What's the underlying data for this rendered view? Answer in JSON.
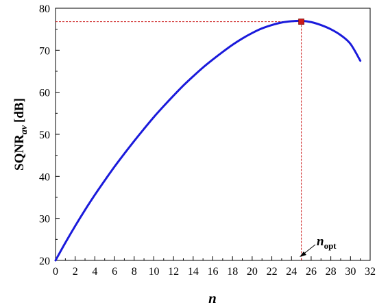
{
  "chart_data": {
    "type": "line",
    "xlabel": "n",
    "ylabel": {
      "main": "SQNR",
      "subscript": "av",
      "unit": "[dB]"
    },
    "xlim": [
      0,
      32
    ],
    "ylim": [
      20,
      80
    ],
    "xticks": [
      0,
      2,
      4,
      6,
      8,
      10,
      12,
      14,
      16,
      18,
      20,
      22,
      24,
      26,
      28,
      30,
      32
    ],
    "yticks": [
      20,
      30,
      40,
      50,
      60,
      70,
      80
    ],
    "grid": false,
    "series": [
      {
        "color": "#1a1adb",
        "x": [
          0,
          1,
          2,
          3,
          4,
          5,
          6,
          7,
          8,
          9,
          10,
          11,
          12,
          13,
          14,
          15,
          16,
          17,
          18,
          19,
          20,
          21,
          22,
          23,
          24,
          25,
          26,
          27,
          28,
          29,
          30,
          31
        ],
        "y": [
          20.0,
          24.2,
          28.2,
          32.0,
          35.6,
          39.0,
          42.3,
          45.4,
          48.4,
          51.3,
          54.1,
          56.7,
          59.2,
          61.6,
          63.8,
          65.9,
          67.8,
          69.6,
          71.3,
          72.8,
          74.1,
          75.2,
          76.0,
          76.6,
          76.9,
          77.0,
          76.7,
          76.0,
          75.0,
          73.6,
          71.5,
          67.5
        ]
      }
    ],
    "optimum": {
      "x": 25,
      "y": 76.8,
      "color": "#cc1a1a"
    },
    "annotation": {
      "main": "n",
      "subscript": "opt",
      "x": 25,
      "y": 20
    }
  }
}
